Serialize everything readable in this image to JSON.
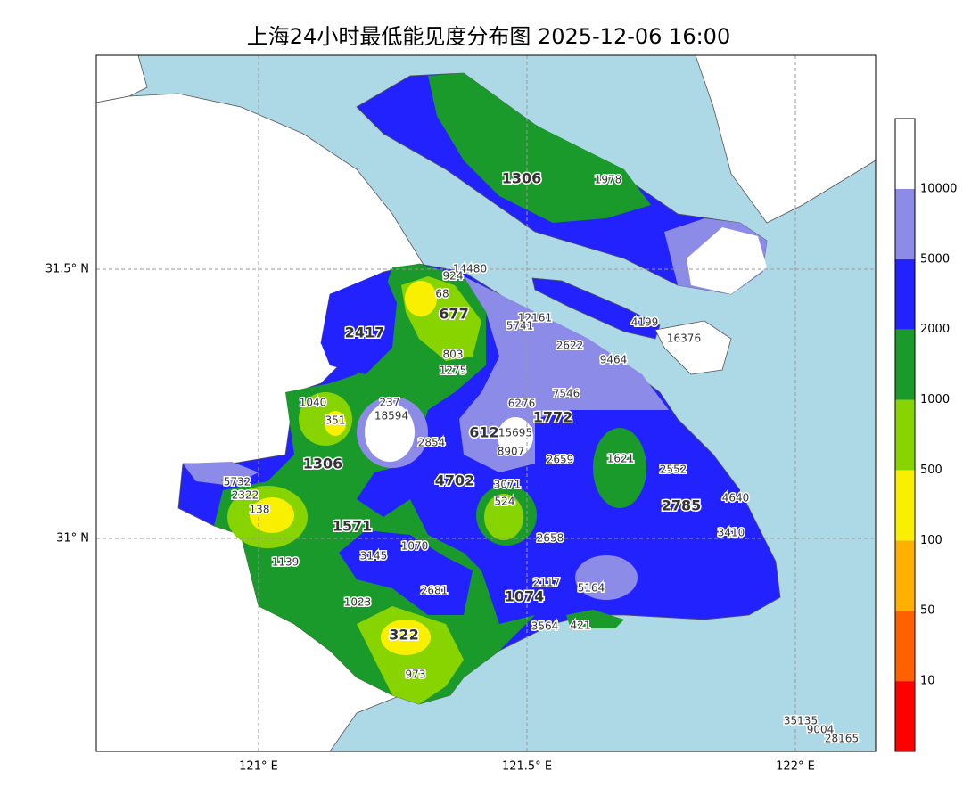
{
  "title": "上海24小时最低能见度分布图 2025-12-06 16:00",
  "lat_labels": [
    "31.5° N",
    "31° N"
  ],
  "lon_labels": [
    "121° E",
    "121.5° E",
    "122° E"
  ],
  "colorbar_labels": [
    10,
    50,
    100,
    500,
    1000,
    2000,
    5000,
    10000
  ],
  "stations": [
    1306,
    1978,
    14480,
    924,
    68,
    677,
    2417,
    12161,
    5741,
    4199,
    16376,
    2622,
    803,
    9464,
    1275,
    7546,
    1040,
    237,
    6276,
    18594,
    1772,
    351,
    612,
    15695,
    2854,
    8907,
    1306,
    2659,
    1621,
    2552,
    5732,
    4702,
    3071,
    2322,
    524,
    4640,
    138,
    2785,
    1571,
    3410,
    2658,
    1070,
    3145,
    1139,
    2117,
    2681,
    5164,
    1074,
    1023,
    3564,
    421,
    322,
    973,
    35135,
    9004,
    28165
  ]
}
